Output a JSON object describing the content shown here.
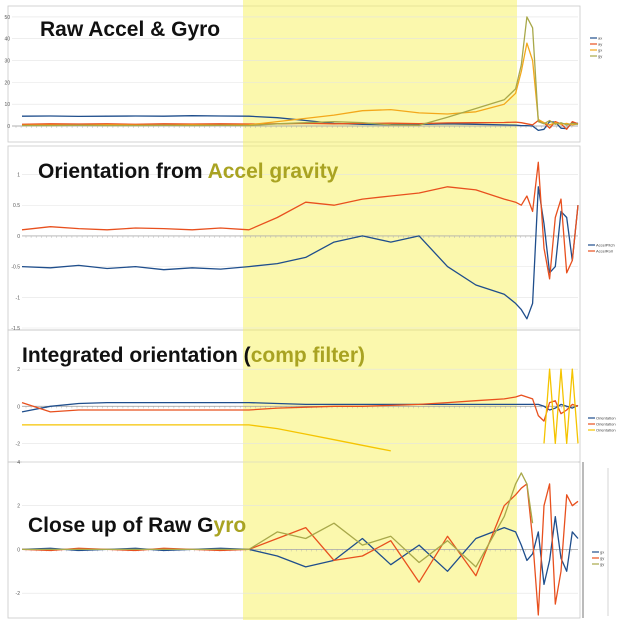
{
  "highlight_color": "#f7f36a",
  "chart_data": [
    {
      "type": "line",
      "title": "Raw Accel & Gyro",
      "title_color_split": 17,
      "ylim": [
        0,
        55
      ],
      "yticks": [
        "0",
        "10",
        "20",
        "30",
        "40",
        "50"
      ],
      "x": [
        0,
        25,
        50,
        75,
        100,
        125,
        150,
        175,
        200,
        225,
        250,
        275,
        300,
        325,
        350,
        375,
        400,
        425,
        435,
        440,
        445,
        450,
        455,
        460,
        465,
        470,
        475,
        480,
        485,
        490
      ],
      "series": [
        {
          "name": "ax",
          "color": "#1f4e8c",
          "values": [
            4.5,
            4.6,
            4.4,
            4.5,
            4.6,
            4.5,
            4.7,
            4.6,
            4.5,
            3.8,
            2.5,
            1.2,
            0.8,
            0.6,
            0.8,
            1.0,
            0.8,
            0.5,
            0.4,
            0.2,
            0.2,
            0.0,
            -2.0,
            -1.5,
            2.0,
            1.8,
            -1.0,
            -1.2,
            1.5,
            1.2
          ]
        },
        {
          "name": "ay",
          "color": "#e8501e",
          "values": [
            0.8,
            1.0,
            0.9,
            1.0,
            0.8,
            1.0,
            0.9,
            1.0,
            0.9,
            1.0,
            1.2,
            1.0,
            1.2,
            1.3,
            1.1,
            1.4,
            1.5,
            1.6,
            1.8,
            1.5,
            1.0,
            0.5,
            2.5,
            1.5,
            -1.0,
            2.0,
            1.0,
            -1.5,
            2.0,
            1.0
          ]
        },
        {
          "name": "gx",
          "color": "#f3a81b",
          "values": [
            0.3,
            0.4,
            0.3,
            0.5,
            0.4,
            0.3,
            0.5,
            0.4,
            0.5,
            2.0,
            3.5,
            5.0,
            7.0,
            7.5,
            6.0,
            5.5,
            6.5,
            10.0,
            15.0,
            25.0,
            38.0,
            30.0,
            3.0,
            1.5,
            0.5,
            1.5,
            0.8,
            1.2,
            0.5,
            1.0
          ]
        },
        {
          "name": "gy",
          "color": "#a8a84a",
          "values": [
            0.2,
            0.2,
            0.3,
            0.2,
            0.2,
            0.3,
            0.2,
            0.3,
            0.2,
            1.0,
            1.5,
            2.0,
            1.5,
            0.5,
            0.3,
            4.0,
            8.0,
            12.0,
            17.0,
            28.0,
            50.0,
            45.0,
            2.0,
            1.0,
            2.5,
            0.8,
            1.5,
            0.5,
            1.2,
            0.8
          ]
        }
      ]
    },
    {
      "type": "line",
      "title": "Orientation from Accel gravity",
      "title_color_split": 17,
      "ylim": [
        -1.5,
        1.4
      ],
      "yticks": [
        "-1.5",
        "-1",
        "-0.5",
        "0",
        "0.5",
        "1"
      ],
      "x": [
        0,
        25,
        50,
        75,
        100,
        125,
        150,
        175,
        200,
        225,
        250,
        275,
        300,
        325,
        350,
        375,
        400,
        425,
        435,
        440,
        445,
        450,
        455,
        460,
        465,
        470,
        475,
        480,
        485,
        490
      ],
      "series": [
        {
          "name": "AccelPitch",
          "color": "#1f4e8c",
          "values": [
            -0.5,
            -0.52,
            -0.48,
            -0.53,
            -0.5,
            -0.55,
            -0.52,
            -0.54,
            -0.5,
            -0.45,
            -0.35,
            -0.1,
            0.0,
            -0.1,
            0.0,
            -0.5,
            -0.8,
            -0.95,
            -1.1,
            -1.2,
            -1.35,
            -1.1,
            0.8,
            0.2,
            -0.6,
            -0.5,
            0.4,
            0.3,
            -0.4,
            0.5
          ]
        },
        {
          "name": "AccelRoll",
          "color": "#e8501e",
          "values": [
            0.1,
            0.15,
            0.12,
            0.1,
            0.13,
            0.12,
            0.1,
            0.13,
            0.1,
            0.3,
            0.55,
            0.5,
            0.6,
            0.65,
            0.7,
            0.8,
            0.75,
            0.6,
            0.55,
            0.5,
            0.65,
            0.4,
            1.2,
            -0.2,
            -0.7,
            0.3,
            0.6,
            -0.6,
            -0.4,
            0.5
          ]
        }
      ]
    },
    {
      "type": "line",
      "title": "Integrated orientation (comp filter)",
      "title_color_split": 24,
      "ylim": [
        -3,
        4
      ],
      "yticks": [
        "-2",
        "0",
        "2"
      ],
      "x": [
        0,
        25,
        50,
        75,
        100,
        125,
        150,
        175,
        200,
        225,
        250,
        275,
        300,
        325,
        350,
        375,
        400,
        425,
        435,
        440,
        445,
        450,
        455,
        460,
        465,
        470,
        475,
        480,
        485,
        490
      ],
      "series": [
        {
          "name": "Orientation",
          "color": "#1f4e8c",
          "values": [
            -0.3,
            0.0,
            0.15,
            0.2,
            0.2,
            0.2,
            0.2,
            0.2,
            0.2,
            0.15,
            0.1,
            0.1,
            0.1,
            0.1,
            0.1,
            0.1,
            0.1,
            0.1,
            0.1,
            0.1,
            0.1,
            0.1,
            0.1,
            0.0,
            -0.2,
            -0.1,
            0.1,
            0.0,
            -0.1,
            0.05
          ]
        },
        {
          "name": "Orientation",
          "color": "#e8501e",
          "values": [
            0.2,
            -0.3,
            -0.2,
            -0.2,
            -0.2,
            -0.2,
            -0.2,
            -0.2,
            -0.2,
            -0.1,
            -0.05,
            0.0,
            0.0,
            0.05,
            0.1,
            0.2,
            0.3,
            0.4,
            0.5,
            0.6,
            0.5,
            0.4,
            -0.5,
            -0.8,
            0.2,
            0.3,
            -0.4,
            -0.2,
            0.1,
            0.0
          ]
        },
        {
          "name": "Orientation",
          "color": "#f5c400",
          "values": [
            -1.0,
            -1.0,
            -1.0,
            -1.0,
            -1.0,
            -1.0,
            -1.0,
            -1.0,
            -1.0,
            -1.2,
            -1.5,
            -1.8,
            -2.1,
            -2.4,
            null,
            null,
            null,
            null,
            null,
            null,
            null,
            null,
            null,
            -2.0,
            2.0,
            -2.0,
            2.0,
            -2.0,
            2.0,
            -2.0
          ]
        }
      ]
    },
    {
      "type": "line",
      "title": "Close up of Raw Gyro",
      "title_color_split": 17,
      "ylim": [
        -3,
        4
      ],
      "yticks": [
        "-2",
        "0",
        "2",
        "4"
      ],
      "x": [
        0,
        25,
        50,
        75,
        100,
        125,
        150,
        175,
        200,
        225,
        250,
        275,
        300,
        325,
        350,
        375,
        400,
        425,
        435,
        440,
        445,
        450,
        455,
        460,
        465,
        470,
        475,
        480,
        485,
        490
      ],
      "series": [
        {
          "name": "gx",
          "color": "#1f4e8c",
          "values": [
            0.0,
            0.05,
            -0.05,
            0.0,
            0.05,
            -0.05,
            0.0,
            0.05,
            0.0,
            -0.3,
            -0.8,
            -0.5,
            0.5,
            -0.7,
            0.2,
            -1.0,
            0.5,
            1.0,
            0.8,
            0.2,
            -0.5,
            -0.2,
            0.8,
            -1.6,
            -0.5,
            1.5,
            -0.4,
            -1.0,
            0.8,
            0.5
          ]
        },
        {
          "name": "gy",
          "color": "#e8501e",
          "values": [
            0.0,
            -0.05,
            0.05,
            0.0,
            -0.05,
            0.05,
            0.0,
            -0.05,
            0.0,
            0.5,
            1.0,
            -0.5,
            -0.3,
            0.4,
            -1.5,
            0.6,
            -1.2,
            2.0,
            2.5,
            2.8,
            3.0,
            0.5,
            -3.0,
            2.0,
            3.0,
            -2.5,
            -1.0,
            2.5,
            2.0,
            2.2
          ]
        },
        {
          "name": "gy",
          "color": "#a8a84a",
          "values": [
            0.0,
            0.0,
            0.0,
            0.0,
            0.0,
            0.0,
            0.0,
            0.0,
            0.0,
            0.8,
            0.5,
            1.2,
            0.2,
            0.6,
            -0.6,
            0.4,
            -0.8,
            1.5,
            3.0,
            3.5,
            3.0,
            1.2,
            null,
            null,
            null,
            null,
            null,
            null,
            null,
            null
          ]
        }
      ]
    }
  ]
}
